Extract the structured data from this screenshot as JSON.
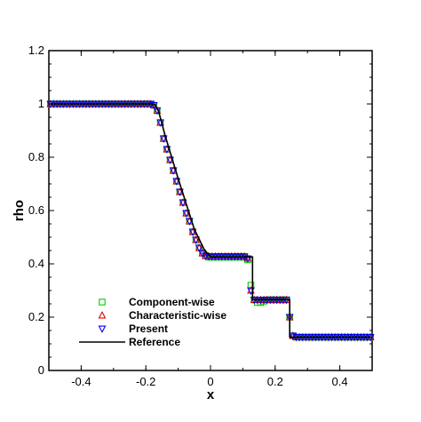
{
  "chart_data": {
    "type": "scatter",
    "title": "",
    "xlabel": "x",
    "ylabel": "rho",
    "xlim": [
      -0.5,
      0.5
    ],
    "ylim": [
      0,
      1.2
    ],
    "x_ticks": [
      -0.4,
      -0.2,
      0,
      0.2,
      0.4
    ],
    "x_tick_labels": [
      "-0.4",
      "-0.2",
      "0",
      "0.2",
      "0.4"
    ],
    "y_ticks": [
      0,
      0.2,
      0.4,
      0.6,
      0.8,
      1,
      1.2
    ],
    "y_tick_labels": [
      "0",
      "0.2",
      "0.4",
      "0.6",
      "0.8",
      "1",
      "1.2"
    ],
    "grid": false,
    "legend_position": "bottom-left",
    "series": [
      {
        "name": "Component-wise",
        "marker": "square",
        "color": "#00cc00",
        "x": [
          -0.495,
          -0.485,
          -0.475,
          -0.465,
          -0.455,
          -0.445,
          -0.435,
          -0.425,
          -0.415,
          -0.405,
          -0.395,
          -0.385,
          -0.375,
          -0.365,
          -0.355,
          -0.345,
          -0.335,
          -0.325,
          -0.315,
          -0.305,
          -0.295,
          -0.285,
          -0.275,
          -0.265,
          -0.255,
          -0.245,
          -0.235,
          -0.225,
          -0.215,
          -0.205,
          -0.195,
          -0.185,
          -0.175,
          -0.165,
          -0.155,
          -0.145,
          -0.135,
          -0.125,
          -0.115,
          -0.105,
          -0.095,
          -0.085,
          -0.075,
          -0.065,
          -0.055,
          -0.045,
          -0.035,
          -0.025,
          -0.015,
          -0.005,
          0.005,
          0.015,
          0.025,
          0.035,
          0.045,
          0.055,
          0.065,
          0.075,
          0.085,
          0.095,
          0.105,
          0.115,
          0.125,
          0.135,
          0.145,
          0.155,
          0.165,
          0.175,
          0.185,
          0.195,
          0.205,
          0.215,
          0.225,
          0.235,
          0.245,
          0.255,
          0.265,
          0.275,
          0.285,
          0.295,
          0.305,
          0.315,
          0.325,
          0.335,
          0.345,
          0.355,
          0.365,
          0.375,
          0.385,
          0.395,
          0.405,
          0.415,
          0.425,
          0.435,
          0.445,
          0.455,
          0.465,
          0.475,
          0.485,
          0.495
        ],
        "y": [
          1,
          1,
          1,
          1,
          1,
          1,
          1,
          1,
          1,
          1,
          1,
          1,
          1,
          1,
          1,
          1,
          1,
          1,
          1,
          1,
          1,
          1,
          1,
          1,
          1,
          1,
          1,
          1,
          1,
          1,
          1,
          1,
          0.995,
          0.975,
          0.93,
          0.87,
          0.83,
          0.79,
          0.75,
          0.71,
          0.67,
          0.63,
          0.59,
          0.56,
          0.52,
          0.49,
          0.46,
          0.44,
          0.43,
          0.425,
          0.425,
          0.425,
          0.425,
          0.425,
          0.425,
          0.425,
          0.425,
          0.425,
          0.425,
          0.425,
          0.425,
          0.415,
          0.32,
          0.265,
          0.255,
          0.255,
          0.26,
          0.265,
          0.265,
          0.265,
          0.265,
          0.265,
          0.265,
          0.265,
          0.2,
          0.13,
          0.125,
          0.125,
          0.125,
          0.125,
          0.125,
          0.125,
          0.125,
          0.125,
          0.125,
          0.125,
          0.125,
          0.125,
          0.125,
          0.125,
          0.125,
          0.125,
          0.125,
          0.125,
          0.125,
          0.125,
          0.125,
          0.125,
          0.125,
          0.125
        ]
      },
      {
        "name": "Characteristic-wise",
        "marker": "triangle-up",
        "color": "#e00000",
        "x": [
          -0.495,
          -0.485,
          -0.475,
          -0.465,
          -0.455,
          -0.445,
          -0.435,
          -0.425,
          -0.415,
          -0.405,
          -0.395,
          -0.385,
          -0.375,
          -0.365,
          -0.355,
          -0.345,
          -0.335,
          -0.325,
          -0.315,
          -0.305,
          -0.295,
          -0.285,
          -0.275,
          -0.265,
          -0.255,
          -0.245,
          -0.235,
          -0.225,
          -0.215,
          -0.205,
          -0.195,
          -0.185,
          -0.175,
          -0.165,
          -0.155,
          -0.145,
          -0.135,
          -0.125,
          -0.115,
          -0.105,
          -0.095,
          -0.085,
          -0.075,
          -0.065,
          -0.055,
          -0.045,
          -0.035,
          -0.025,
          -0.015,
          -0.005,
          0.005,
          0.015,
          0.025,
          0.035,
          0.045,
          0.055,
          0.065,
          0.075,
          0.085,
          0.095,
          0.105,
          0.115,
          0.125,
          0.135,
          0.145,
          0.155,
          0.165,
          0.175,
          0.185,
          0.195,
          0.205,
          0.215,
          0.225,
          0.235,
          0.245,
          0.255,
          0.265,
          0.275,
          0.285,
          0.295,
          0.305,
          0.315,
          0.325,
          0.335,
          0.345,
          0.355,
          0.365,
          0.375,
          0.385,
          0.395,
          0.405,
          0.415,
          0.425,
          0.435,
          0.445,
          0.455,
          0.465,
          0.475,
          0.485,
          0.495
        ],
        "y": [
          1,
          1,
          1,
          1,
          1,
          1,
          1,
          1,
          1,
          1,
          1,
          1,
          1,
          1,
          1,
          1,
          1,
          1,
          1,
          1,
          1,
          1,
          1,
          1,
          1,
          1,
          1,
          1,
          1,
          1,
          1,
          1,
          0.995,
          0.975,
          0.93,
          0.87,
          0.83,
          0.79,
          0.75,
          0.71,
          0.67,
          0.63,
          0.59,
          0.56,
          0.52,
          0.49,
          0.46,
          0.44,
          0.43,
          0.428,
          0.428,
          0.428,
          0.428,
          0.428,
          0.428,
          0.428,
          0.428,
          0.428,
          0.428,
          0.428,
          0.428,
          0.42,
          0.3,
          0.265,
          0.265,
          0.265,
          0.265,
          0.265,
          0.265,
          0.265,
          0.265,
          0.265,
          0.265,
          0.265,
          0.2,
          0.13,
          0.125,
          0.125,
          0.125,
          0.125,
          0.125,
          0.125,
          0.125,
          0.125,
          0.125,
          0.125,
          0.125,
          0.125,
          0.125,
          0.125,
          0.125,
          0.125,
          0.125,
          0.125,
          0.125,
          0.125,
          0.125,
          0.125,
          0.125,
          0.125
        ]
      },
      {
        "name": "Present",
        "marker": "triangle-down",
        "color": "#0000ee",
        "x": [
          -0.495,
          -0.485,
          -0.475,
          -0.465,
          -0.455,
          -0.445,
          -0.435,
          -0.425,
          -0.415,
          -0.405,
          -0.395,
          -0.385,
          -0.375,
          -0.365,
          -0.355,
          -0.345,
          -0.335,
          -0.325,
          -0.315,
          -0.305,
          -0.295,
          -0.285,
          -0.275,
          -0.265,
          -0.255,
          -0.245,
          -0.235,
          -0.225,
          -0.215,
          -0.205,
          -0.195,
          -0.185,
          -0.175,
          -0.165,
          -0.155,
          -0.145,
          -0.135,
          -0.125,
          -0.115,
          -0.105,
          -0.095,
          -0.085,
          -0.075,
          -0.065,
          -0.055,
          -0.045,
          -0.035,
          -0.025,
          -0.015,
          -0.005,
          0.005,
          0.015,
          0.025,
          0.035,
          0.045,
          0.055,
          0.065,
          0.075,
          0.085,
          0.095,
          0.105,
          0.115,
          0.125,
          0.135,
          0.145,
          0.155,
          0.165,
          0.175,
          0.185,
          0.195,
          0.205,
          0.215,
          0.225,
          0.235,
          0.245,
          0.255,
          0.265,
          0.275,
          0.285,
          0.295,
          0.305,
          0.315,
          0.325,
          0.335,
          0.345,
          0.355,
          0.365,
          0.375,
          0.385,
          0.395,
          0.405,
          0.415,
          0.425,
          0.435,
          0.445,
          0.455,
          0.465,
          0.475,
          0.485,
          0.495
        ],
        "y": [
          1,
          1,
          1,
          1,
          1,
          1,
          1,
          1,
          1,
          1,
          1,
          1,
          1,
          1,
          1,
          1,
          1,
          1,
          1,
          1,
          1,
          1,
          1,
          1,
          1,
          1,
          1,
          1,
          1,
          1,
          1,
          1,
          0.995,
          0.975,
          0.93,
          0.87,
          0.83,
          0.79,
          0.75,
          0.71,
          0.67,
          0.63,
          0.59,
          0.56,
          0.52,
          0.49,
          0.46,
          0.44,
          0.43,
          0.428,
          0.428,
          0.428,
          0.428,
          0.428,
          0.428,
          0.428,
          0.428,
          0.428,
          0.428,
          0.428,
          0.428,
          0.42,
          0.3,
          0.265,
          0.265,
          0.265,
          0.265,
          0.265,
          0.265,
          0.265,
          0.265,
          0.265,
          0.265,
          0.265,
          0.2,
          0.13,
          0.125,
          0.125,
          0.125,
          0.125,
          0.125,
          0.125,
          0.125,
          0.125,
          0.125,
          0.125,
          0.125,
          0.125,
          0.125,
          0.125,
          0.125,
          0.125,
          0.125,
          0.125,
          0.125,
          0.125,
          0.125,
          0.125,
          0.125,
          0.125
        ]
      },
      {
        "name": "Reference",
        "marker": "line",
        "color": "#000000",
        "x": [
          -0.5,
          -0.18,
          -0.17,
          -0.16,
          -0.14,
          -0.1,
          -0.05,
          -0.02,
          0,
          0.13,
          0.13,
          0.245,
          0.245,
          0.5
        ],
        "y": [
          1,
          1,
          0.995,
          0.97,
          0.88,
          0.72,
          0.53,
          0.455,
          0.426,
          0.426,
          0.266,
          0.266,
          0.125,
          0.125
        ]
      }
    ]
  }
}
